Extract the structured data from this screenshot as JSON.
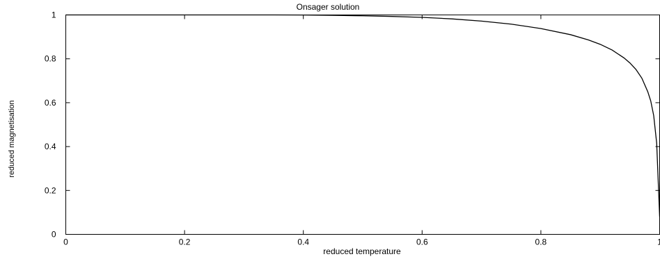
{
  "chart_data": {
    "type": "line",
    "title": "Onsager solution",
    "xlabel": "reduced temperature",
    "ylabel": "reduced magnetisation",
    "xlim": [
      0,
      1
    ],
    "ylim": [
      0,
      1
    ],
    "x_ticks": [
      "0",
      "0.2",
      "0.4",
      "0.6",
      "0.8",
      "1"
    ],
    "y_ticks": [
      "0",
      "0.2",
      "0.4",
      "0.6",
      "0.8",
      "1"
    ],
    "grid": false,
    "legend": "none",
    "line_color": "#000000",
    "series": [
      {
        "x": [
          0,
          0.3,
          0.35,
          0.4,
          0.45,
          0.5,
          0.55,
          0.6,
          0.65,
          0.7,
          0.75,
          0.8,
          0.85,
          0.88,
          0.9,
          0.92,
          0.94,
          0.95,
          0.96,
          0.97,
          0.98,
          0.985,
          0.99,
          0.995,
          1.0
        ],
        "y": [
          1,
          1,
          0.9999,
          0.9995,
          0.998,
          0.996,
          0.993,
          0.989,
          0.982,
          0.972,
          0.958,
          0.938,
          0.91,
          0.886,
          0.866,
          0.84,
          0.804,
          0.781,
          0.752,
          0.712,
          0.65,
          0.608,
          0.541,
          0.415,
          0.08
        ]
      }
    ]
  }
}
